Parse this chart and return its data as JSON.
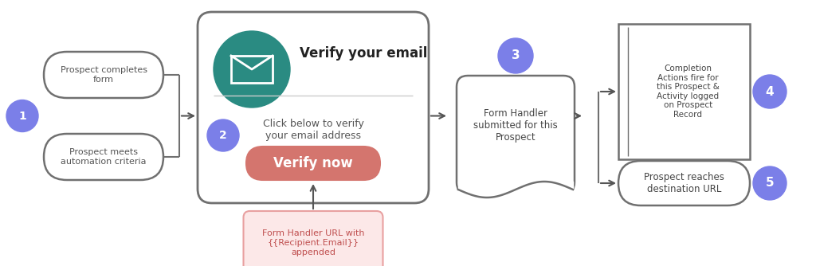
{
  "bg_color": "#ffffff",
  "purple_circle_color": "#7b7fe8",
  "teal_circle_color": "#2a8b82",
  "red_button_color": "#d4756e",
  "pink_box_color": "#fce8e8",
  "pink_box_border": "#e8a0a0",
  "box_border_color": "#707070",
  "arrow_color": "#555555",
  "pill1_text": "Prospect completes\nform",
  "pill2_text": "Prospect meets\nautomation criteria",
  "email_title": "Verify your email",
  "email_subtitle": "Click below to verify\nyour email address",
  "button_text": "Verify now",
  "bubble_text": "Form Handler\nsubmitted for this\nProspect",
  "box4_text": "Completion\nActions fire for\nthis Prospect &\nActivity logged\non Prospect\nRecord",
  "pill5_text": "Prospect reaches\ndestination URL",
  "bottom_box_text": "Form Handler URL with\n{{Recipient.Email}}\nappended",
  "num1": "1",
  "num2": "2",
  "num3": "3",
  "num4": "4",
  "num5": "5"
}
